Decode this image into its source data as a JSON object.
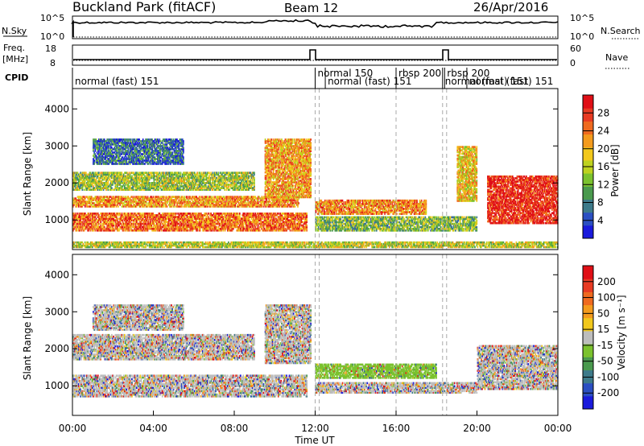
{
  "header": {
    "site": "Buckland Park (fitACF)",
    "beam": "Beam 12",
    "date": "26/Apr/2016"
  },
  "strip_labels": {
    "nsky": "N.Sky",
    "nsky_ticks": [
      "10^5",
      "10^0"
    ],
    "nsearch": "N.Search",
    "nsearch_ticks": [
      "10^5",
      "10^0"
    ],
    "freq_line1": "Freq.",
    "freq_line2": "[MHz]",
    "freq_ticks": [
      "18",
      "8"
    ],
    "nave": "Nave",
    "nave_ticks": [
      "60",
      "0"
    ],
    "cpid": "CPID"
  },
  "cpid_segments": [
    {
      "label": "normal (fast) 151",
      "start_h": 0.0,
      "end_h": 12.0,
      "row": 1
    },
    {
      "label": "normal 150",
      "start_h": 12.0,
      "end_h": 12.5,
      "row": 0
    },
    {
      "label": "normal (fast) 151",
      "start_h": 12.5,
      "end_h": 16.0,
      "row": 1
    },
    {
      "label": "rbsp 200",
      "start_h": 16.0,
      "end_h": 18.3,
      "row": 0
    },
    {
      "label": "normal (fast) 151",
      "start_h": 18.3,
      "end_h": 21.0,
      "row": 1
    },
    {
      "label": "rbsp 200",
      "start_h": 18.4,
      "end_h": 19.5,
      "row": 0
    },
    {
      "label": "normal (fast) 151",
      "start_h": 19.5,
      "end_h": 24.0,
      "row": 1
    }
  ],
  "chart_data": [
    {
      "type": "heatmap",
      "name": "power",
      "ylabel": "Slant Range [km]",
      "yticks": [
        1000,
        2000,
        3000,
        4000
      ],
      "ylim": [
        200,
        4550
      ],
      "xlim_hours": [
        0,
        24
      ],
      "colorbar": {
        "label": "Power [dB]",
        "ticks": [
          "4",
          "8",
          "12",
          "16",
          "20",
          "24",
          "28"
        ],
        "range": [
          0,
          32
        ],
        "colors": [
          "#1a1adc",
          "#2b4fc2",
          "#3d7a8a",
          "#4a9a4e",
          "#7bc22e",
          "#bdd21f",
          "#f2c81c",
          "#f49b1d",
          "#ef6a1f",
          "#e83a22",
          "#e00f16"
        ]
      },
      "regions": [
        {
          "t0": 0.0,
          "t1": 11.6,
          "r0": 700,
          "r1": 1200,
          "level": 0.78
        },
        {
          "t0": 0.0,
          "t1": 11.2,
          "r0": 1350,
          "r1": 1650,
          "level": 0.7
        },
        {
          "t0": 0.0,
          "t1": 9.0,
          "r0": 1800,
          "r1": 2300,
          "level": 0.45
        },
        {
          "t0": 1.0,
          "t1": 5.5,
          "r0": 2500,
          "r1": 3200,
          "level": 0.2
        },
        {
          "t0": 9.5,
          "t1": 11.8,
          "r0": 1600,
          "r1": 3200,
          "level": 0.68
        },
        {
          "t0": 12.0,
          "t1": 17.5,
          "r0": 1150,
          "r1": 1550,
          "level": 0.72
        },
        {
          "t0": 12.0,
          "t1": 20.0,
          "r0": 700,
          "r1": 1100,
          "level": 0.4
        },
        {
          "t0": 20.5,
          "t1": 24.0,
          "r0": 900,
          "r1": 2200,
          "level": 0.92
        },
        {
          "t0": 0.0,
          "t1": 24.0,
          "r0": 250,
          "r1": 420,
          "level": 0.5
        },
        {
          "t0": 19.0,
          "t1": 20.0,
          "r0": 1500,
          "r1": 3000,
          "level": 0.6
        }
      ]
    },
    {
      "type": "heatmap",
      "name": "velocity",
      "ylabel": "Slant Range [km]",
      "xlabel": "Time UT",
      "yticks": [
        1000,
        2000,
        3000,
        4000
      ],
      "ylim": [
        200,
        4550
      ],
      "xlim_hours": [
        0,
        24
      ],
      "xticks": [
        "00:00",
        "04:00",
        "08:00",
        "12:00",
        "16:00",
        "20:00",
        "00:00"
      ],
      "colorbar": {
        "label": "Velocity [m s⁻¹]",
        "ticks": [
          "200",
          "100",
          "50",
          "15",
          "-15",
          "-50",
          "-100",
          "-200"
        ],
        "colors": [
          "#1a1adc",
          "#2b4fc2",
          "#3d7a8a",
          "#4a9a4e",
          "#7bc22e",
          "#bdbdbd",
          "#f2c81c",
          "#f49b1d",
          "#ef6a1f",
          "#e83a22",
          "#e00f16"
        ]
      },
      "regions": [
        {
          "t0": 0.0,
          "t1": 11.6,
          "r0": 700,
          "r1": 1300,
          "level": 0.5
        },
        {
          "t0": 0.0,
          "t1": 9.0,
          "r0": 1700,
          "r1": 2400,
          "level": 0.5
        },
        {
          "t0": 1.0,
          "t1": 5.5,
          "r0": 2500,
          "r1": 3200,
          "level": 0.5
        },
        {
          "t0": 9.5,
          "t1": 11.8,
          "r0": 1600,
          "r1": 3200,
          "level": 0.5
        },
        {
          "t0": 12.0,
          "t1": 18.0,
          "r0": 1200,
          "r1": 1600,
          "level": 0.35
        },
        {
          "t0": 12.0,
          "t1": 20.0,
          "r0": 800,
          "r1": 1100,
          "level": 0.45
        },
        {
          "t0": 20.0,
          "t1": 24.0,
          "r0": 900,
          "r1": 2100,
          "level": 0.45
        }
      ]
    }
  ]
}
